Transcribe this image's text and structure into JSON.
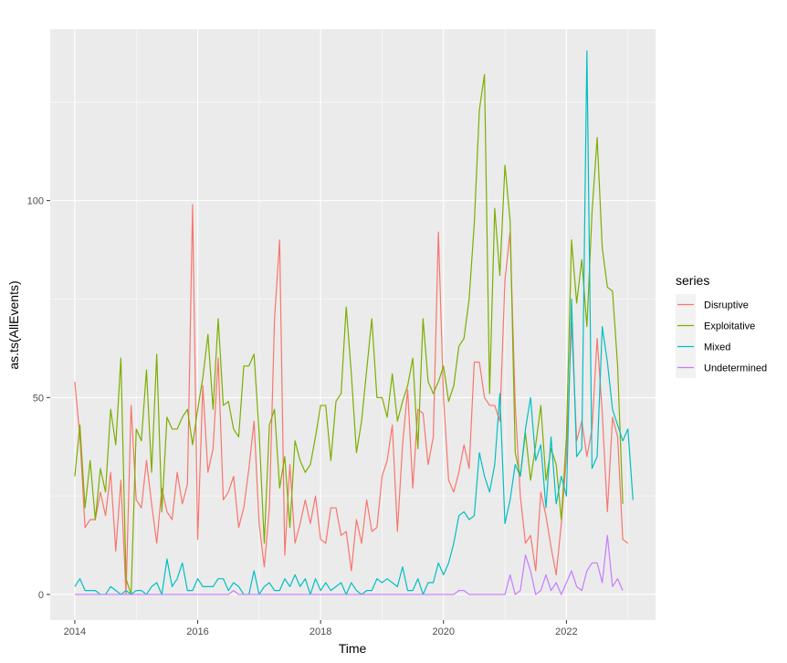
{
  "chart_data": {
    "type": "line",
    "xlabel": "Time",
    "ylabel": "as.ts(AllEvents)",
    "xlim": [
      2013.6,
      2023.45
    ],
    "ylim": [
      -6.5,
      143.5
    ],
    "x_ticks": [
      2014,
      2016,
      2018,
      2020,
      2022
    ],
    "x_tick_labels": [
      "2014",
      "2016",
      "2018",
      "2020",
      "2022"
    ],
    "y_ticks": [
      0,
      50,
      100
    ],
    "y_tick_labels": [
      "0",
      "50",
      "100"
    ],
    "grid": true,
    "background": "#ebebeb",
    "legend": {
      "title": "series",
      "position": "right",
      "entries": [
        "Disruptive",
        "Exploitative",
        "Mixed",
        "Undetermined"
      ]
    },
    "x_start": 2014,
    "x_step": 0.08333333,
    "series": [
      {
        "name": "Disruptive",
        "color": "#F8766D",
        "values": [
          54,
          40,
          17,
          19,
          19,
          26,
          20,
          31,
          11,
          29,
          0,
          48,
          24,
          22,
          34,
          23,
          13,
          27,
          21,
          19,
          31,
          23,
          28,
          99,
          14,
          53,
          31,
          37,
          60,
          24,
          26,
          30,
          17,
          22,
          32,
          44,
          18,
          7,
          22,
          70,
          90,
          10,
          33,
          13,
          18,
          24,
          18,
          25,
          14,
          13,
          22,
          22,
          15,
          16,
          6,
          19,
          13,
          24,
          16,
          17,
          30,
          34,
          43,
          16,
          38,
          52,
          27,
          47,
          46,
          33,
          40,
          92,
          50,
          29,
          26,
          31,
          38,
          32,
          59,
          59,
          50,
          48,
          48,
          44,
          80,
          92,
          48,
          25,
          13,
          15,
          6,
          26,
          20,
          12,
          5,
          18,
          35,
          69,
          39,
          44,
          35,
          42,
          65,
          46,
          21,
          45,
          40,
          14,
          13
        ],
        "description": "monthly counts Jan 2014 - Jan 2023"
      },
      {
        "name": "Exploitative",
        "color": "#7CAE00",
        "values": [
          30,
          43,
          22,
          34,
          19,
          32,
          26,
          47,
          38,
          60,
          4,
          0,
          42,
          39,
          57,
          31,
          61,
          21,
          45,
          42,
          42,
          45,
          47,
          38,
          47,
          55,
          66,
          47,
          70,
          48,
          49,
          42,
          40,
          58,
          58,
          61,
          41,
          13,
          43,
          47,
          27,
          35,
          17,
          39,
          34,
          31,
          33,
          40,
          48,
          48,
          34,
          49,
          51,
          73,
          56,
          36,
          44,
          57,
          70,
          50,
          50,
          45,
          56,
          44,
          49,
          53,
          60,
          37,
          70,
          54,
          51,
          54,
          58,
          49,
          53,
          63,
          65,
          75,
          94,
          123,
          132,
          51,
          98,
          81,
          109,
          95,
          36,
          30,
          41,
          29,
          38,
          48,
          29,
          37,
          33,
          19,
          40,
          90,
          74,
          85,
          68,
          97,
          116,
          88,
          78,
          77,
          58,
          23
        ],
        "description": "monthly counts Jan 2014 - Dec 2022"
      },
      {
        "name": "Mixed",
        "color": "#00BFC4",
        "values": [
          2,
          4,
          1,
          1,
          1,
          0,
          0,
          2,
          1,
          0,
          1,
          0,
          1,
          1,
          0,
          2,
          3,
          0,
          9,
          2,
          4,
          8,
          1,
          1,
          4,
          2,
          2,
          2,
          4,
          4,
          1,
          3,
          2,
          0,
          0,
          6,
          0,
          2,
          3,
          1,
          1,
          4,
          2,
          5,
          2,
          4,
          0,
          4,
          1,
          3,
          1,
          2,
          3,
          0,
          3,
          1,
          0,
          1,
          1,
          4,
          3,
          4,
          3,
          2,
          7,
          1,
          1,
          4,
          0,
          3,
          3,
          8,
          5,
          8,
          13,
          20,
          21,
          19,
          20,
          36,
          30,
          26,
          33,
          51,
          18,
          24,
          33,
          30,
          42,
          50,
          34,
          38,
          22,
          40,
          23,
          30,
          25,
          75,
          35,
          37,
          138,
          32,
          35,
          68,
          59,
          47,
          43,
          39,
          42,
          24
        ],
        "description": "monthly counts Jan 2014 - Feb 2023"
      },
      {
        "name": "Undetermined",
        "color": "#C77CFF",
        "values": [
          0,
          0,
          0,
          0,
          0,
          0,
          0,
          0,
          0,
          0,
          0,
          0,
          0,
          0,
          0,
          0,
          0,
          0,
          0,
          0,
          0,
          0,
          0,
          0,
          0,
          0,
          0,
          0,
          0,
          0,
          0,
          1,
          0,
          0,
          0,
          0,
          0,
          0,
          0,
          0,
          0,
          0,
          0,
          0,
          0,
          0,
          0,
          0,
          0,
          0,
          0,
          0,
          0,
          0,
          0,
          0,
          0,
          0,
          0,
          0,
          0,
          0,
          0,
          0,
          0,
          0,
          0,
          0,
          0,
          0,
          0,
          0,
          0,
          0,
          0,
          1,
          1,
          0,
          0,
          0,
          0,
          0,
          0,
          0,
          0,
          5,
          0,
          1,
          10,
          6,
          0,
          1,
          5,
          1,
          3,
          0,
          3,
          6,
          2,
          1,
          6,
          8,
          8,
          3,
          15,
          2,
          4,
          1
        ],
        "description": "monthly counts Jan 2014 - Dec 2022"
      }
    ]
  }
}
